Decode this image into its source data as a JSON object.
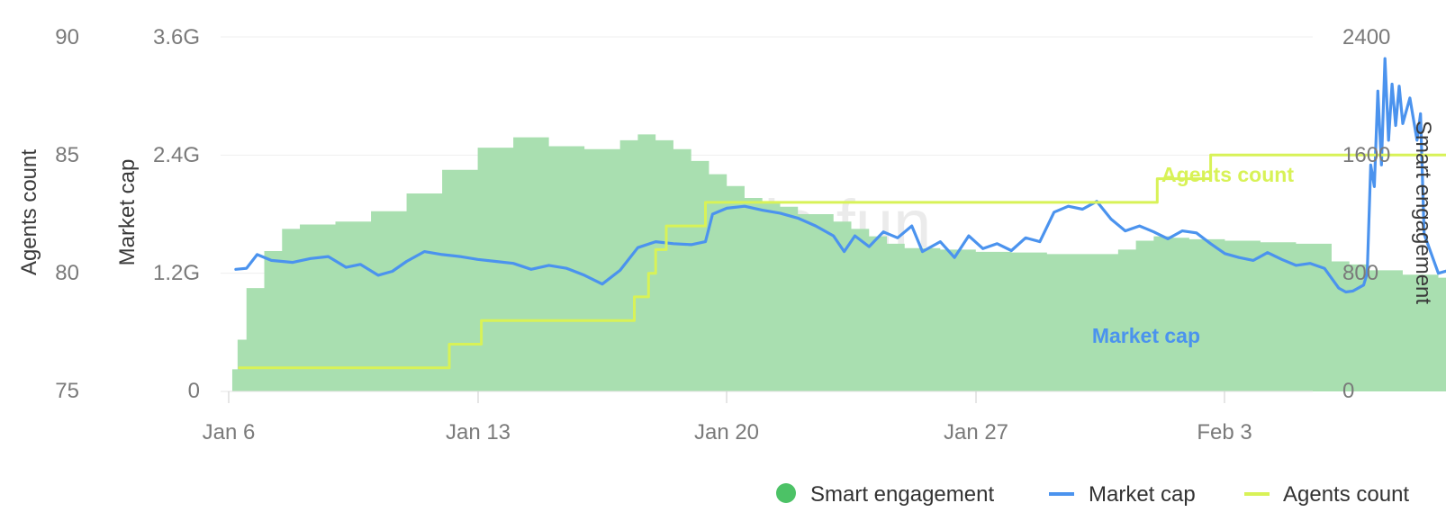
{
  "chart_data": {
    "type": "line",
    "x_ticks": [
      "Jan 6",
      "Jan 13",
      "Jan 20",
      "Jan 27",
      "Feb 3"
    ],
    "axes": {
      "agents": {
        "label": "Agents count",
        "ticks": [
          "75",
          "80",
          "85",
          "90"
        ],
        "range": [
          75,
          90
        ]
      },
      "market_cap": {
        "label": "Market cap",
        "ticks": [
          "0",
          "1.2G",
          "2.4G",
          "3.6G"
        ],
        "range": [
          0,
          3.6
        ],
        "unit": "G"
      },
      "engagement": {
        "label": "Smart engagement",
        "ticks": [
          "0",
          "800",
          "1600",
          "2400"
        ],
        "range": [
          0,
          2400
        ]
      }
    },
    "watermark": "cookie.fun",
    "legend": [
      {
        "label": "Smart engagement",
        "color": "#4cc266",
        "shape": "dot"
      },
      {
        "label": "Market cap",
        "color": "#4b93ee",
        "shape": "line"
      },
      {
        "label": "Agents count",
        "color": "#d8f257",
        "shape": "line"
      }
    ],
    "series": [
      {
        "name": "Smart engagement",
        "axis": "engagement",
        "type": "area",
        "color": "#a9dfb0",
        "points": [
          [
            0.05,
            0
          ],
          [
            0.1,
            150
          ],
          [
            0.25,
            350
          ],
          [
            0.5,
            700
          ],
          [
            1.0,
            950
          ],
          [
            1.5,
            1100
          ],
          [
            2.0,
            1130
          ],
          [
            3.0,
            1150
          ],
          [
            4.0,
            1220
          ],
          [
            5.0,
            1340
          ],
          [
            6.0,
            1500
          ],
          [
            7.0,
            1650
          ],
          [
            8.0,
            1720
          ],
          [
            9.0,
            1660
          ],
          [
            10.0,
            1640
          ],
          [
            11.0,
            1700
          ],
          [
            11.5,
            1740
          ],
          [
            12.0,
            1700
          ],
          [
            12.5,
            1640
          ],
          [
            13.0,
            1560
          ],
          [
            13.5,
            1470
          ],
          [
            14.0,
            1390
          ],
          [
            14.5,
            1310
          ],
          [
            15.0,
            1280
          ],
          [
            15.5,
            1250
          ],
          [
            16.0,
            1200
          ],
          [
            17.0,
            1150
          ],
          [
            17.5,
            1100
          ],
          [
            18.0,
            1050
          ],
          [
            18.5,
            1000
          ],
          [
            19.0,
            970
          ],
          [
            20.0,
            960
          ],
          [
            21.0,
            945
          ],
          [
            22.0,
            940
          ],
          [
            23.0,
            930
          ],
          [
            24.0,
            930
          ],
          [
            25.0,
            960
          ],
          [
            25.5,
            1020
          ],
          [
            26.0,
            1050
          ],
          [
            26.5,
            1040
          ],
          [
            27.0,
            1030
          ],
          [
            28.0,
            1020
          ],
          [
            29.0,
            1010
          ],
          [
            30.0,
            1000
          ],
          [
            30.5,
            1000
          ],
          [
            31.0,
            880
          ],
          [
            31.5,
            860
          ],
          [
            32.0,
            820
          ],
          [
            33.0,
            790
          ],
          [
            34.0,
            770
          ],
          [
            34.8,
            740
          ]
        ]
      },
      {
        "name": "Market cap",
        "axis": "market_cap",
        "type": "line",
        "color": "#4b93ee",
        "points": [
          [
            0.2,
            1.24
          ],
          [
            0.5,
            1.25
          ],
          [
            0.8,
            1.39
          ],
          [
            1.2,
            1.33
          ],
          [
            1.8,
            1.31
          ],
          [
            2.3,
            1.35
          ],
          [
            2.8,
            1.37
          ],
          [
            3.3,
            1.26
          ],
          [
            3.7,
            1.29
          ],
          [
            4.2,
            1.18
          ],
          [
            4.6,
            1.22
          ],
          [
            5.0,
            1.32
          ],
          [
            5.5,
            1.42
          ],
          [
            6.0,
            1.39
          ],
          [
            6.5,
            1.37
          ],
          [
            7.0,
            1.34
          ],
          [
            7.5,
            1.32
          ],
          [
            8.0,
            1.3
          ],
          [
            8.5,
            1.24
          ],
          [
            9.0,
            1.28
          ],
          [
            9.5,
            1.25
          ],
          [
            10.0,
            1.18
          ],
          [
            10.5,
            1.09
          ],
          [
            11.0,
            1.23
          ],
          [
            11.5,
            1.46
          ],
          [
            12.0,
            1.52
          ],
          [
            12.5,
            1.5
          ],
          [
            13.0,
            1.49
          ],
          [
            13.4,
            1.52
          ],
          [
            13.6,
            1.8
          ],
          [
            14.0,
            1.86
          ],
          [
            14.5,
            1.88
          ],
          [
            15.0,
            1.84
          ],
          [
            15.5,
            1.81
          ],
          [
            16.0,
            1.76
          ],
          [
            16.5,
            1.68
          ],
          [
            17.0,
            1.58
          ],
          [
            17.3,
            1.42
          ],
          [
            17.6,
            1.58
          ],
          [
            18.0,
            1.47
          ],
          [
            18.4,
            1.62
          ],
          [
            18.8,
            1.56
          ],
          [
            19.2,
            1.68
          ],
          [
            19.5,
            1.42
          ],
          [
            20.0,
            1.52
          ],
          [
            20.4,
            1.36
          ],
          [
            20.8,
            1.58
          ],
          [
            21.2,
            1.45
          ],
          [
            21.6,
            1.5
          ],
          [
            22.0,
            1.43
          ],
          [
            22.4,
            1.56
          ],
          [
            22.8,
            1.52
          ],
          [
            23.2,
            1.82
          ],
          [
            23.6,
            1.88
          ],
          [
            24.0,
            1.85
          ],
          [
            24.4,
            1.93
          ],
          [
            24.8,
            1.75
          ],
          [
            25.2,
            1.63
          ],
          [
            25.6,
            1.68
          ],
          [
            26.0,
            1.62
          ],
          [
            26.4,
            1.55
          ],
          [
            26.8,
            1.63
          ],
          [
            27.2,
            1.61
          ],
          [
            27.6,
            1.5
          ],
          [
            28.0,
            1.4
          ],
          [
            28.4,
            1.36
          ],
          [
            28.8,
            1.33
          ],
          [
            29.2,
            1.41
          ],
          [
            29.6,
            1.34
          ],
          [
            30.0,
            1.28
          ],
          [
            30.4,
            1.3
          ],
          [
            30.8,
            1.25
          ],
          [
            31.2,
            1.05
          ],
          [
            31.4,
            1.01
          ],
          [
            31.6,
            1.02
          ],
          [
            31.9,
            1.08
          ],
          [
            32.0,
            1.2
          ],
          [
            32.1,
            2.3
          ],
          [
            32.2,
            2.08
          ],
          [
            32.3,
            3.05
          ],
          [
            32.4,
            2.3
          ],
          [
            32.5,
            3.38
          ],
          [
            32.6,
            2.55
          ],
          [
            32.7,
            3.12
          ],
          [
            32.8,
            2.7
          ],
          [
            32.9,
            3.1
          ],
          [
            33.0,
            2.72
          ],
          [
            33.2,
            2.98
          ],
          [
            33.4,
            2.55
          ],
          [
            33.5,
            2.82
          ],
          [
            33.6,
            1.6
          ],
          [
            33.8,
            1.4
          ],
          [
            34.0,
            1.2
          ],
          [
            34.4,
            1.24
          ],
          [
            34.8,
            1.27
          ],
          [
            35.2,
            1.2
          ],
          [
            35.6,
            1.28
          ],
          [
            36.0,
            1.18
          ],
          [
            36.4,
            1.12
          ],
          [
            36.8,
            1.2
          ],
          [
            37.2,
            1.24
          ],
          [
            37.6,
            1.13
          ],
          [
            38.0,
            1.06
          ],
          [
            38.4,
            1.02
          ],
          [
            38.8,
            1.05
          ],
          [
            39.2,
            1.04
          ],
          [
            39.6,
            1.0
          ],
          [
            40.0,
            0.98
          ],
          [
            40.4,
            0.93
          ],
          [
            40.8,
            0.9
          ],
          [
            41.2,
            0.87
          ],
          [
            41.6,
            0.83
          ],
          [
            42.0,
            0.8
          ],
          [
            42.4,
            0.77
          ],
          [
            42.8,
            0.74
          ],
          [
            43.2,
            0.78
          ],
          [
            43.5,
            0.74
          ],
          [
            43.8,
            0.88
          ],
          [
            44.1,
            1.0
          ],
          [
            44.4,
            0.97
          ],
          [
            44.7,
            0.9
          ],
          [
            45.0,
            1.02
          ],
          [
            45.3,
            0.96
          ],
          [
            45.6,
            1.0
          ],
          [
            46.0,
            0.94
          ],
          [
            46.2,
            0.95
          ]
        ]
      },
      {
        "name": "Agents count",
        "axis": "agents",
        "type": "step",
        "color": "#d8f257",
        "points": [
          [
            0.3,
            76
          ],
          [
            6.2,
            76
          ],
          [
            6.2,
            77
          ],
          [
            7.1,
            77
          ],
          [
            7.1,
            78
          ],
          [
            11.4,
            78
          ],
          [
            11.4,
            79
          ],
          [
            11.8,
            79
          ],
          [
            11.8,
            80
          ],
          [
            12.0,
            80
          ],
          [
            12.0,
            81
          ],
          [
            12.3,
            81
          ],
          [
            12.3,
            82
          ],
          [
            13.4,
            82
          ],
          [
            13.4,
            83
          ],
          [
            26.1,
            83
          ],
          [
            26.1,
            84
          ],
          [
            27.6,
            84
          ],
          [
            27.6,
            85
          ],
          [
            46.2,
            85
          ]
        ]
      }
    ],
    "annotations": [
      {
        "text": "Agents count",
        "color": "#d8f257"
      },
      {
        "text": "Market cap",
        "color": "#4b93ee"
      }
    ]
  }
}
